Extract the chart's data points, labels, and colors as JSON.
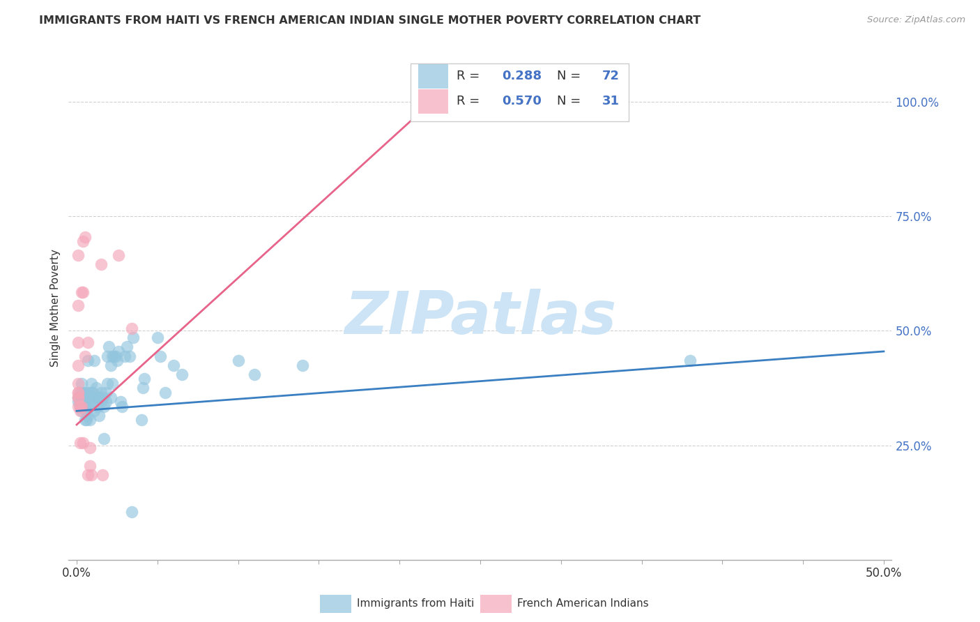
{
  "title": "IMMIGRANTS FROM HAITI VS FRENCH AMERICAN INDIAN SINGLE MOTHER POVERTY CORRELATION CHART",
  "source": "Source: ZipAtlas.com",
  "ylabel": "Single Mother Poverty",
  "series1_label": "Immigrants from Haiti",
  "series2_label": "French American Indians",
  "blue_color": "#92c5de",
  "pink_color": "#f4a7b9",
  "blue_line_color": "#3a7fc1",
  "pink_line_color": "#e8638a",
  "legend_blue_color": "#92c5de",
  "legend_pink_color": "#f4a7b9",
  "value_color": "#4472c4",
  "text_color": "#333333",
  "watermark_color": "#cce4f5",
  "grid_color": "#d0d0d0",
  "bg_color": "#ffffff",
  "blue_scatter": [
    [
      0.001,
      0.345
    ],
    [
      0.001,
      0.355
    ],
    [
      0.002,
      0.335
    ],
    [
      0.002,
      0.365
    ],
    [
      0.002,
      0.345
    ],
    [
      0.003,
      0.325
    ],
    [
      0.003,
      0.355
    ],
    [
      0.003,
      0.385
    ],
    [
      0.004,
      0.335
    ],
    [
      0.004,
      0.365
    ],
    [
      0.004,
      0.345
    ],
    [
      0.005,
      0.305
    ],
    [
      0.005,
      0.365
    ],
    [
      0.005,
      0.335
    ],
    [
      0.006,
      0.305
    ],
    [
      0.006,
      0.345
    ],
    [
      0.006,
      0.325
    ],
    [
      0.007,
      0.315
    ],
    [
      0.007,
      0.365
    ],
    [
      0.007,
      0.435
    ],
    [
      0.008,
      0.335
    ],
    [
      0.008,
      0.355
    ],
    [
      0.008,
      0.305
    ],
    [
      0.009,
      0.385
    ],
    [
      0.009,
      0.365
    ],
    [
      0.01,
      0.345
    ],
    [
      0.01,
      0.365
    ],
    [
      0.011,
      0.325
    ],
    [
      0.011,
      0.435
    ],
    [
      0.012,
      0.355
    ],
    [
      0.012,
      0.375
    ],
    [
      0.013,
      0.355
    ],
    [
      0.013,
      0.335
    ],
    [
      0.014,
      0.355
    ],
    [
      0.014,
      0.315
    ],
    [
      0.015,
      0.345
    ],
    [
      0.015,
      0.365
    ],
    [
      0.016,
      0.355
    ],
    [
      0.017,
      0.335
    ],
    [
      0.017,
      0.265
    ],
    [
      0.018,
      0.345
    ],
    [
      0.018,
      0.365
    ],
    [
      0.019,
      0.445
    ],
    [
      0.019,
      0.385
    ],
    [
      0.02,
      0.465
    ],
    [
      0.021,
      0.355
    ],
    [
      0.021,
      0.425
    ],
    [
      0.022,
      0.445
    ],
    [
      0.022,
      0.385
    ],
    [
      0.023,
      0.445
    ],
    [
      0.024,
      0.445
    ],
    [
      0.025,
      0.435
    ],
    [
      0.026,
      0.455
    ],
    [
      0.027,
      0.345
    ],
    [
      0.028,
      0.335
    ],
    [
      0.03,
      0.445
    ],
    [
      0.031,
      0.465
    ],
    [
      0.033,
      0.445
    ],
    [
      0.034,
      0.105
    ],
    [
      0.035,
      0.485
    ],
    [
      0.04,
      0.305
    ],
    [
      0.041,
      0.375
    ],
    [
      0.042,
      0.395
    ],
    [
      0.05,
      0.485
    ],
    [
      0.052,
      0.445
    ],
    [
      0.055,
      0.365
    ],
    [
      0.06,
      0.425
    ],
    [
      0.065,
      0.405
    ],
    [
      0.1,
      0.435
    ],
    [
      0.11,
      0.405
    ],
    [
      0.14,
      0.425
    ],
    [
      0.38,
      0.435
    ]
  ],
  "pink_scatter": [
    [
      0.001,
      0.665
    ],
    [
      0.001,
      0.355
    ],
    [
      0.001,
      0.355
    ],
    [
      0.001,
      0.555
    ],
    [
      0.001,
      0.425
    ],
    [
      0.001,
      0.475
    ],
    [
      0.001,
      0.385
    ],
    [
      0.001,
      0.365
    ],
    [
      0.001,
      0.335
    ],
    [
      0.001,
      0.365
    ],
    [
      0.002,
      0.335
    ],
    [
      0.002,
      0.255
    ],
    [
      0.002,
      0.325
    ],
    [
      0.002,
      0.335
    ],
    [
      0.003,
      0.585
    ],
    [
      0.003,
      0.335
    ],
    [
      0.004,
      0.695
    ],
    [
      0.004,
      0.585
    ],
    [
      0.004,
      0.255
    ],
    [
      0.005,
      0.445
    ],
    [
      0.005,
      0.705
    ],
    [
      0.007,
      0.475
    ],
    [
      0.007,
      0.185
    ],
    [
      0.008,
      0.205
    ],
    [
      0.008,
      0.245
    ],
    [
      0.009,
      0.185
    ],
    [
      0.015,
      0.645
    ],
    [
      0.016,
      0.185
    ],
    [
      0.026,
      0.665
    ],
    [
      0.034,
      0.505
    ],
    [
      0.22,
      1.0
    ]
  ],
  "blue_line_x": [
    0.0,
    0.5
  ],
  "blue_line_y": [
    0.325,
    0.455
  ],
  "pink_line_x": [
    0.0,
    0.22
  ],
  "pink_line_y": [
    0.295,
    1.0
  ],
  "xlim": [
    -0.005,
    0.505
  ],
  "ylim": [
    0.0,
    1.1
  ],
  "yticks": [
    0.25,
    0.5,
    0.75,
    1.0
  ],
  "ytick_labels": [
    "25.0%",
    "50.0%",
    "75.0%",
    "100.0%"
  ],
  "xtick_positions": [
    0.0,
    0.05,
    0.1,
    0.15,
    0.2,
    0.25,
    0.3,
    0.35,
    0.4,
    0.45,
    0.5
  ],
  "watermark": "ZIPatlas"
}
